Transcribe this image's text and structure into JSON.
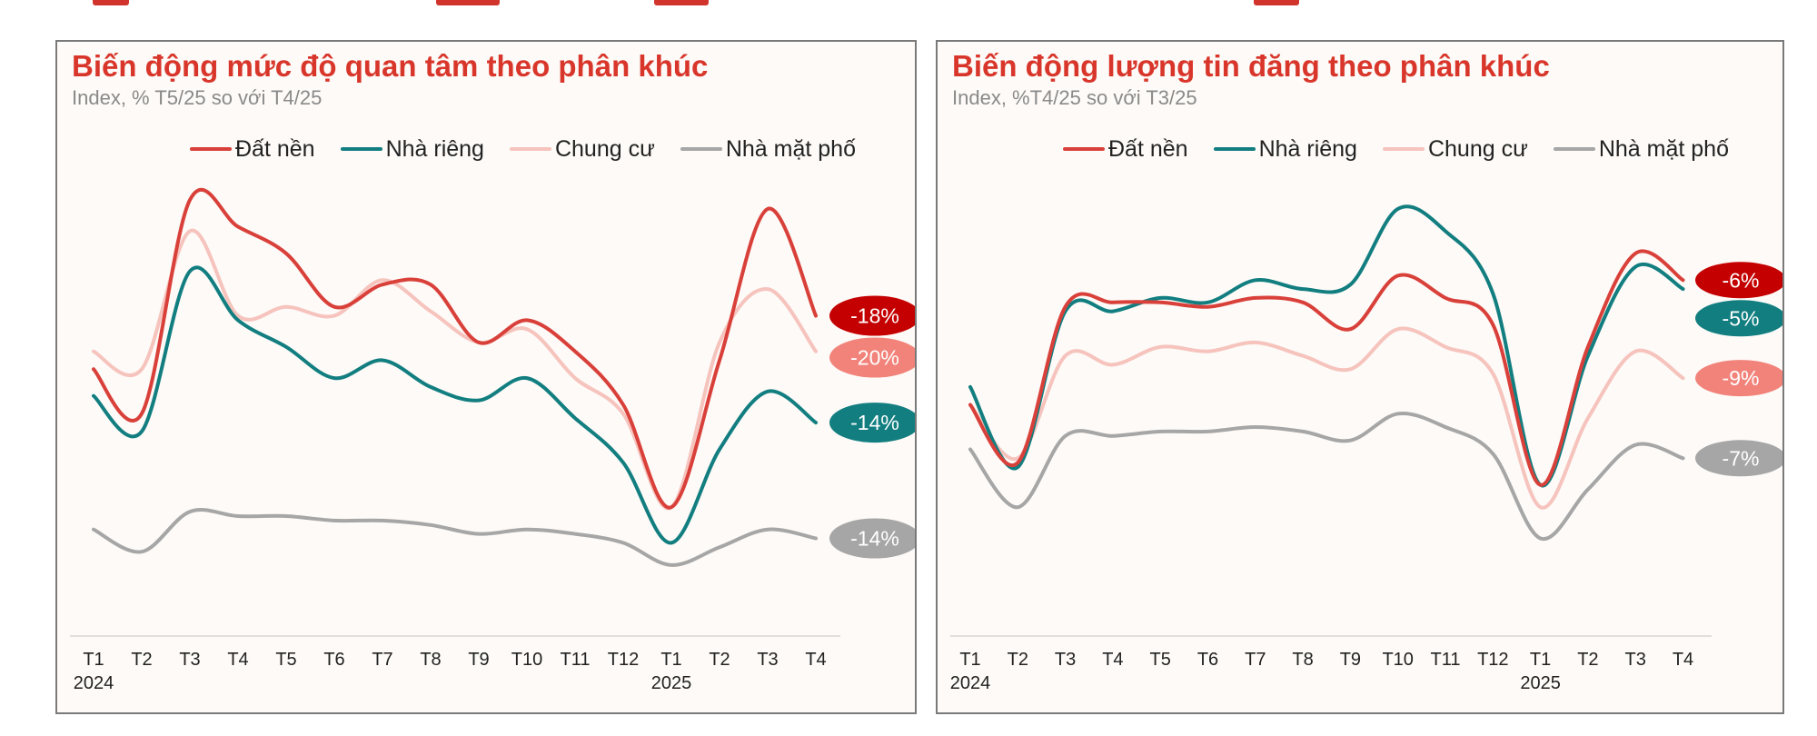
{
  "colors": {
    "dat_nen": "#d9403a",
    "nha_rieng": "#127e80",
    "chung_cu": "#f6c3bd",
    "nha_mat_pho": "#a6a6a6",
    "title": "#d9362b",
    "badge_red": "#c40000",
    "badge_salmon": "#f2837a",
    "badge_teal": "#127e80",
    "badge_gray": "#a6a6a6"
  },
  "chart_data": [
    {
      "type": "line",
      "title": "Biến động mức độ quan tâm theo phân khúc",
      "subtitle": "Index, % T5/25 so với T4/25",
      "legend_position": "top",
      "grid": false,
      "x": [
        "T1",
        "T2",
        "T3",
        "T4",
        "T5",
        "T6",
        "T7",
        "T8",
        "T9",
        "T10",
        "T11",
        "T12",
        "T1",
        "T2",
        "T3",
        "T4"
      ],
      "year_labels": [
        {
          "index": 0,
          "label": "2024"
        },
        {
          "index": 12,
          "label": "2025"
        }
      ],
      "ylim": [
        0,
        100
      ],
      "series": [
        {
          "name": "Đất nền",
          "color_key": "dat_nen",
          "values": [
            53,
            43,
            91,
            85,
            79,
            67,
            72,
            72,
            59,
            64,
            57,
            45,
            22,
            55,
            89,
            65
          ],
          "end_label": "-18%",
          "end_label_color_key": "badge_red"
        },
        {
          "name": "Nhà riêng",
          "color_key": "nha_rieng",
          "values": [
            47,
            39,
            75,
            64,
            58,
            51,
            55,
            49,
            46,
            51,
            42,
            32,
            14,
            35,
            48,
            41
          ],
          "end_label": "-14%",
          "end_label_color_key": "badge_teal"
        },
        {
          "name": "Chung cư",
          "color_key": "chung_cu",
          "values": [
            57,
            53,
            84,
            65,
            67,
            65,
            73,
            66,
            59,
            62,
            51,
            43,
            22,
            59,
            71,
            57
          ],
          "end_label": "-20%",
          "end_label_color_key": "badge_salmon"
        },
        {
          "name": "Nhà mặt phố",
          "color_key": "nha_mat_pho",
          "values": [
            17,
            12,
            21,
            20,
            20,
            19,
            19,
            18,
            16,
            17,
            16,
            14,
            9,
            13,
            17,
            15
          ],
          "end_label": "-14%",
          "end_label_color_key": "badge_gray"
        }
      ]
    },
    {
      "type": "line",
      "title": "Biến động lượng tin đăng theo phân khúc",
      "subtitle": "Index, %T4/25 so với T3/25",
      "legend_position": "top",
      "grid": false,
      "x": [
        "T1",
        "T2",
        "T3",
        "T4",
        "T5",
        "T6",
        "T7",
        "T8",
        "T9",
        "T10",
        "T11",
        "T12",
        "T1",
        "T2",
        "T3",
        "T4"
      ],
      "year_labels": [
        {
          "index": 0,
          "label": "2024"
        },
        {
          "index": 12,
          "label": "2025"
        }
      ],
      "ylim": [
        0,
        100
      ],
      "series": [
        {
          "name": "Đất nền",
          "color_key": "dat_nen",
          "values": [
            45,
            32,
            67,
            68,
            68,
            67,
            69,
            68,
            62,
            74,
            69,
            63,
            27,
            58,
            79,
            73
          ],
          "end_label": "-6%",
          "end_label_color_key": "badge_red"
        },
        {
          "name": "Nhà riêng",
          "color_key": "nha_rieng",
          "values": [
            49,
            31,
            66,
            66,
            69,
            68,
            73,
            71,
            72,
            89,
            84,
            70,
            27,
            56,
            76,
            71
          ],
          "end_label": "-5%",
          "end_label_color_key": "badge_teal"
        },
        {
          "name": "Chung cư",
          "color_key": "chung_cu",
          "values": [
            45,
            33,
            56,
            54,
            58,
            57,
            59,
            56,
            53,
            62,
            58,
            52,
            22,
            42,
            57,
            51
          ],
          "end_label": "-9%",
          "end_label_color_key": "badge_salmon"
        },
        {
          "name": "Nhà mặt phố",
          "color_key": "nha_mat_pho",
          "values": [
            35,
            22,
            38,
            38,
            39,
            39,
            40,
            39,
            37,
            43,
            40,
            34,
            15,
            26,
            36,
            33
          ],
          "end_label": "-7%",
          "end_label_color_key": "badge_gray"
        }
      ]
    }
  ]
}
